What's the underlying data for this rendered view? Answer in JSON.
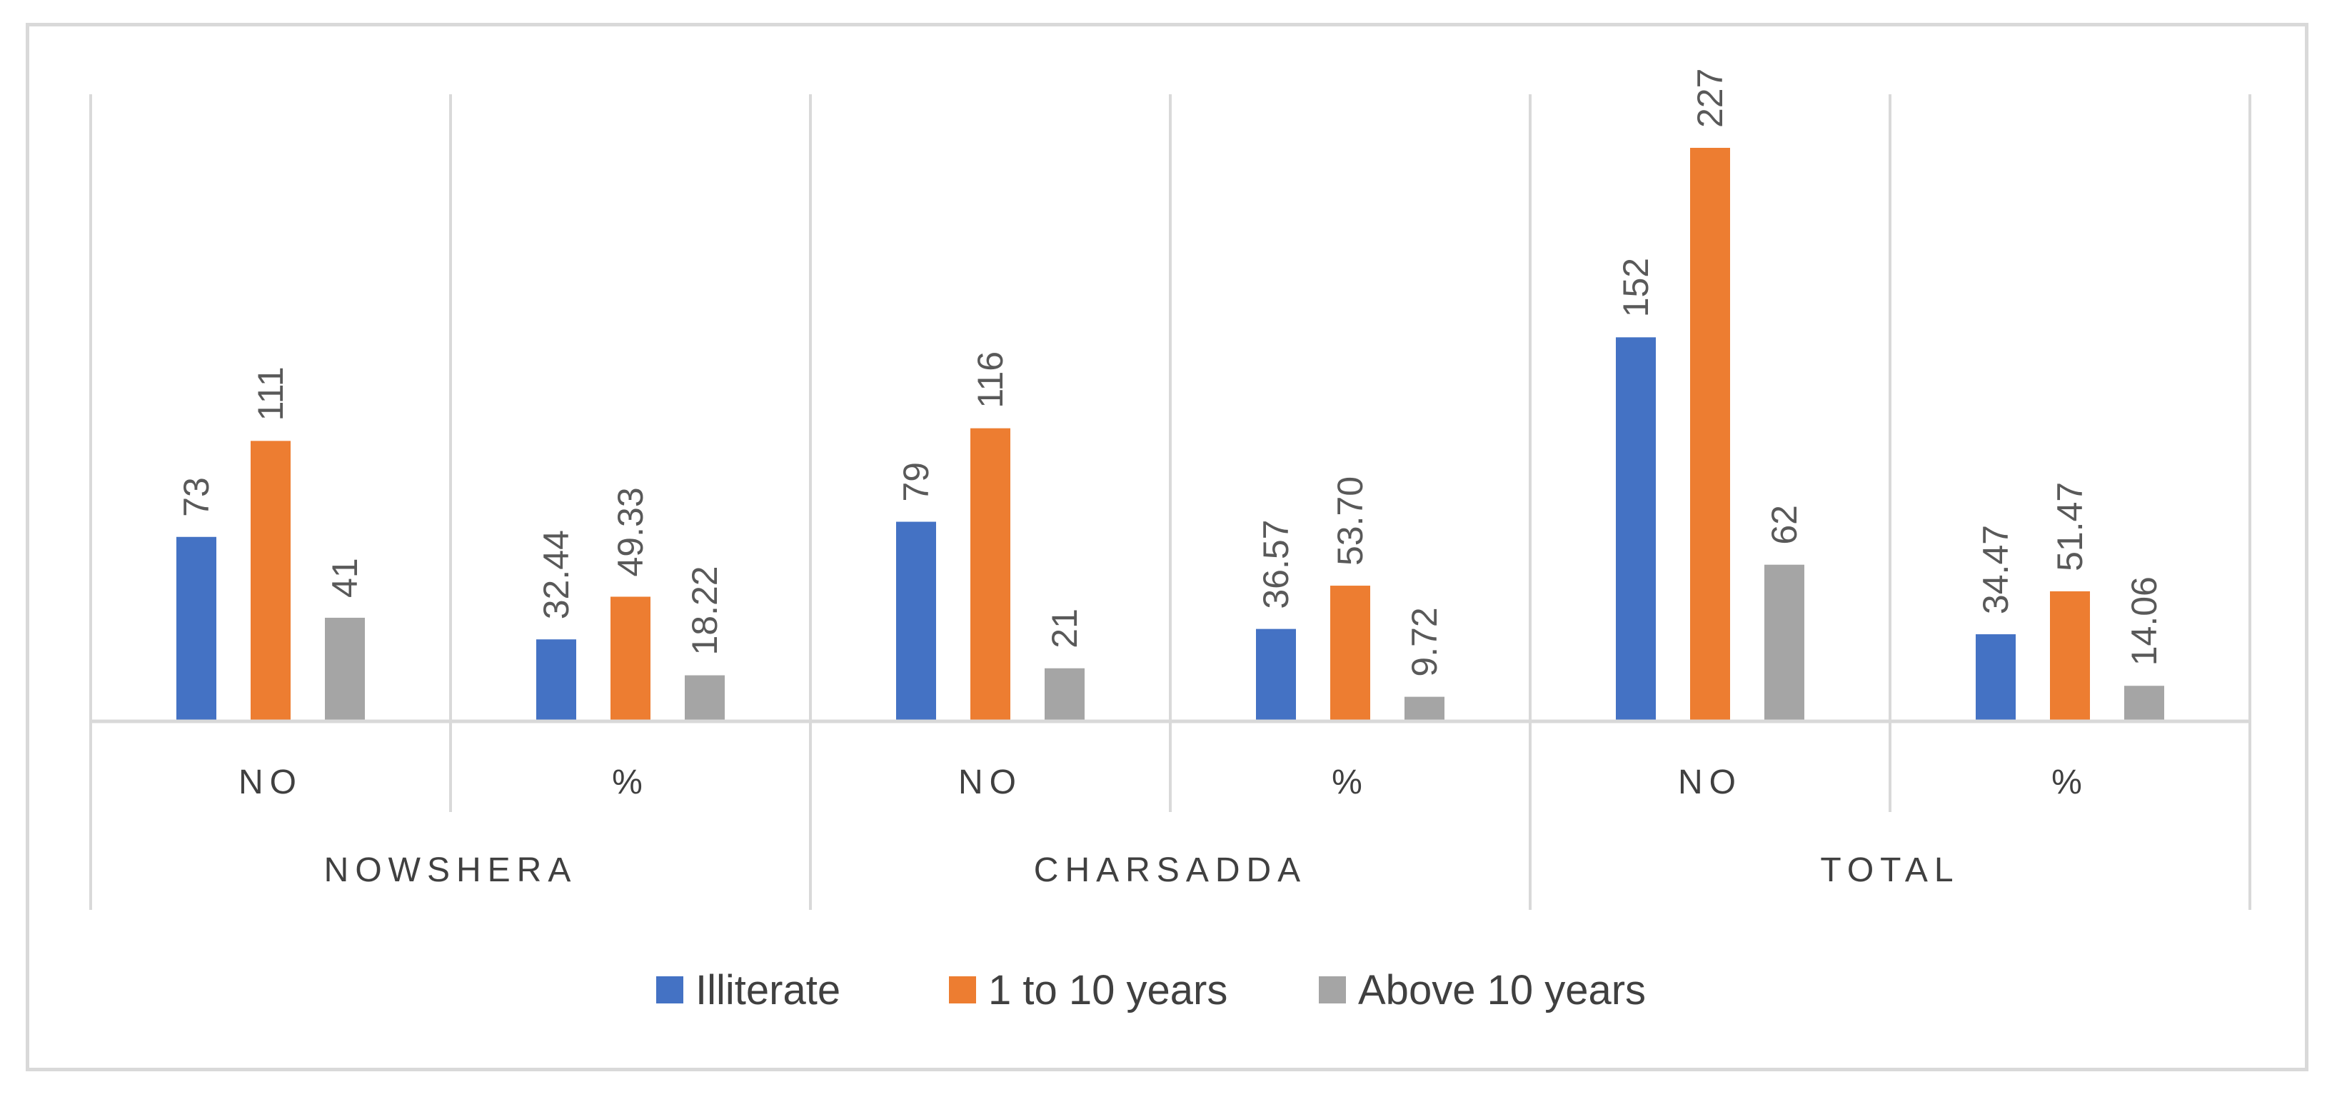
{
  "chart_data": {
    "type": "bar",
    "groups": [
      {
        "name": "NOWSHERA",
        "subcategories": [
          "NO",
          "%"
        ]
      },
      {
        "name": "CHARSADDA",
        "subcategories": [
          "NO",
          "%"
        ]
      },
      {
        "name": "TOTAL",
        "subcategories": [
          "NO",
          "%"
        ]
      }
    ],
    "categories": [
      "NOWSHERA NO",
      "NOWSHERA %",
      "CHARSADDA NO",
      "CHARSADDA %",
      "TOTAL NO",
      "TOTAL %"
    ],
    "series": [
      {
        "name": "Illiterate",
        "color": "#4472c4",
        "values": [
          73,
          32.44,
          79,
          36.57,
          152,
          34.47
        ],
        "labels": [
          "73",
          "32.44",
          "79",
          "36.57",
          "152",
          "34.47"
        ]
      },
      {
        "name": "1 to 10 years",
        "color": "#ed7d31",
        "values": [
          111,
          49.33,
          116,
          53.7,
          227,
          51.47
        ],
        "labels": [
          "111",
          "49.33",
          "116",
          "53.70",
          "227",
          "51.47"
        ]
      },
      {
        "name": "Above 10 years",
        "color": "#a5a5a5",
        "values": [
          41,
          18.22,
          21,
          9.72,
          62,
          14.06
        ],
        "labels": [
          "41",
          "18.22",
          "21",
          "9.72",
          "62",
          "14.06"
        ]
      }
    ],
    "ylim": [
      0,
      250
    ],
    "grid": false,
    "legend_position": "bottom",
    "title": "",
    "xlabel": "",
    "ylabel": ""
  }
}
